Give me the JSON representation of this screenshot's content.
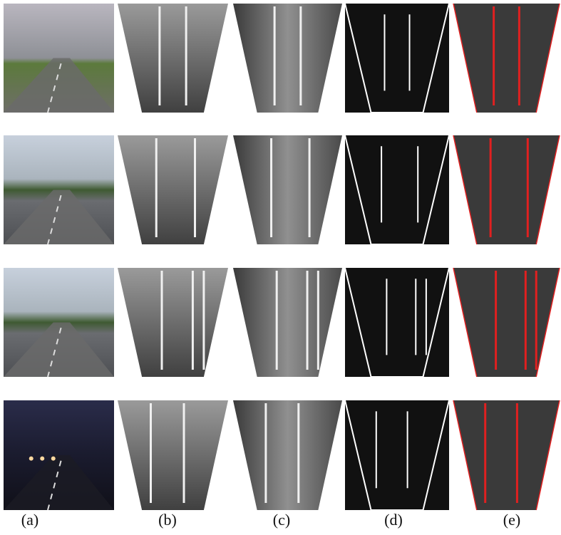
{
  "figure": {
    "column_labels": [
      "(a)",
      "(b)",
      "(c)",
      "(d)",
      "(e)"
    ]
  }
}
